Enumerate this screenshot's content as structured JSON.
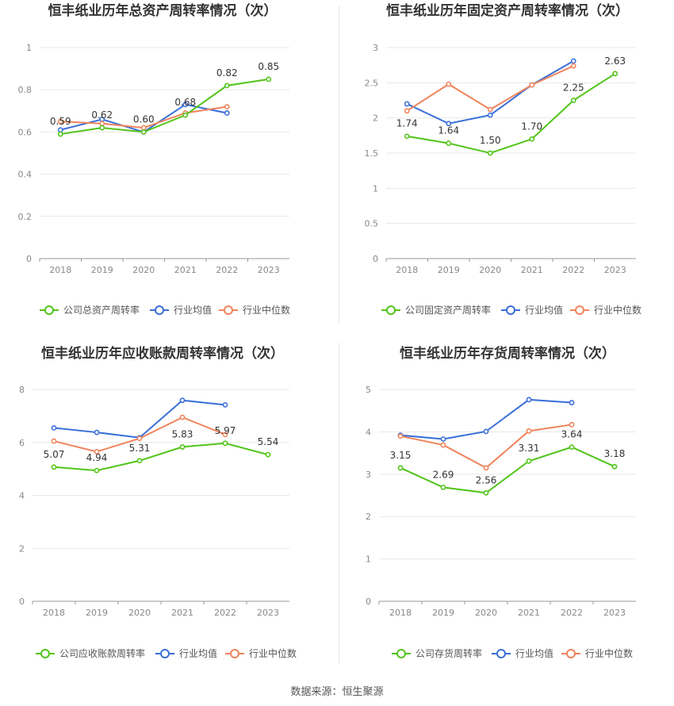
{
  "source": "数据来源：恒生聚源",
  "colors": {
    "company": "#52c41a",
    "avg": "#3a6fd8",
    "median": "#f0845c",
    "grid": "#e8e8e8",
    "axis": "#999999"
  },
  "chart_data": [
    {
      "type": "line",
      "title": "恒丰纸业历年总资产周转率情况（次）",
      "categories": [
        "2018",
        "2019",
        "2020",
        "2021",
        "2022",
        "2023"
      ],
      "ylim": [
        0,
        1
      ],
      "yticks": [
        "0",
        "0.2",
        "0.4",
        "0.6",
        "0.8",
        "1"
      ],
      "grid": true,
      "legend": "bottom",
      "series": [
        {
          "name": "公司总资产周转率",
          "role": "company",
          "values": [
            0.59,
            0.62,
            0.6,
            0.68,
            0.82,
            0.85
          ],
          "labels": [
            "0.59",
            "0.62",
            "0.60",
            "0.68",
            "0.82",
            "0.85"
          ]
        },
        {
          "name": "行业均值",
          "role": "avg",
          "values": [
            0.61,
            0.66,
            0.6,
            0.73,
            0.69,
            null
          ]
        },
        {
          "name": "行业中位数",
          "role": "median",
          "values": [
            0.65,
            0.64,
            0.62,
            0.69,
            0.72,
            null
          ]
        }
      ]
    },
    {
      "type": "line",
      "title": "恒丰纸业历年固定资产周转率情况（次）",
      "categories": [
        "2018",
        "2019",
        "2020",
        "2021",
        "2022",
        "2023"
      ],
      "ylim": [
        0,
        3
      ],
      "yticks": [
        "0",
        "0.5",
        "1",
        "1.5",
        "2",
        "2.5",
        "3"
      ],
      "grid": true,
      "legend": "bottom",
      "series": [
        {
          "name": "公司固定资产周转率",
          "role": "company",
          "values": [
            1.74,
            1.64,
            1.5,
            1.7,
            2.25,
            2.63
          ],
          "labels": [
            "1.74",
            "1.64",
            "1.50",
            "1.70",
            "2.25",
            "2.63"
          ]
        },
        {
          "name": "行业均值",
          "role": "avg",
          "values": [
            2.2,
            1.92,
            2.04,
            2.47,
            2.81,
            null
          ]
        },
        {
          "name": "行业中位数",
          "role": "median",
          "values": [
            2.1,
            2.48,
            2.12,
            2.47,
            2.74,
            null
          ]
        }
      ]
    },
    {
      "type": "line",
      "title": "恒丰纸业历年应收账款周转率情况（次）",
      "categories": [
        "2018",
        "2019",
        "2020",
        "2021",
        "2022",
        "2023"
      ],
      "ylim": [
        0,
        8
      ],
      "yticks": [
        "0",
        "2",
        "4",
        "6",
        "8"
      ],
      "grid": true,
      "legend": "bottom",
      "series": [
        {
          "name": "公司应收账款周转率",
          "role": "company",
          "values": [
            5.07,
            4.94,
            5.31,
            5.83,
            5.97,
            5.54
          ],
          "labels": [
            "5.07",
            "4.94",
            "5.31",
            "5.83",
            "5.97",
            "5.54"
          ]
        },
        {
          "name": "行业均值",
          "role": "avg",
          "values": [
            6.55,
            6.38,
            6.18,
            7.59,
            7.42,
            null
          ]
        },
        {
          "name": "行业中位数",
          "role": "median",
          "values": [
            6.05,
            5.65,
            6.15,
            6.95,
            6.3,
            null
          ]
        }
      ]
    },
    {
      "type": "line",
      "title": "恒丰纸业历年存货周转率情况（次）",
      "categories": [
        "2018",
        "2019",
        "2020",
        "2021",
        "2022",
        "2023"
      ],
      "ylim": [
        0,
        5
      ],
      "yticks": [
        "0",
        "1",
        "2",
        "3",
        "4",
        "5"
      ],
      "grid": true,
      "legend": "bottom",
      "series": [
        {
          "name": "公司存货周转率",
          "role": "company",
          "values": [
            3.15,
            2.69,
            2.56,
            3.31,
            3.64,
            3.18
          ],
          "labels": [
            "3.15",
            "2.69",
            "2.56",
            "3.31",
            "3.64",
            "3.18"
          ]
        },
        {
          "name": "行业均值",
          "role": "avg",
          "values": [
            3.92,
            3.83,
            4.01,
            4.76,
            4.69,
            null
          ]
        },
        {
          "name": "行业中位数",
          "role": "median",
          "values": [
            3.9,
            3.69,
            3.15,
            4.02,
            4.17,
            null
          ]
        }
      ]
    }
  ]
}
